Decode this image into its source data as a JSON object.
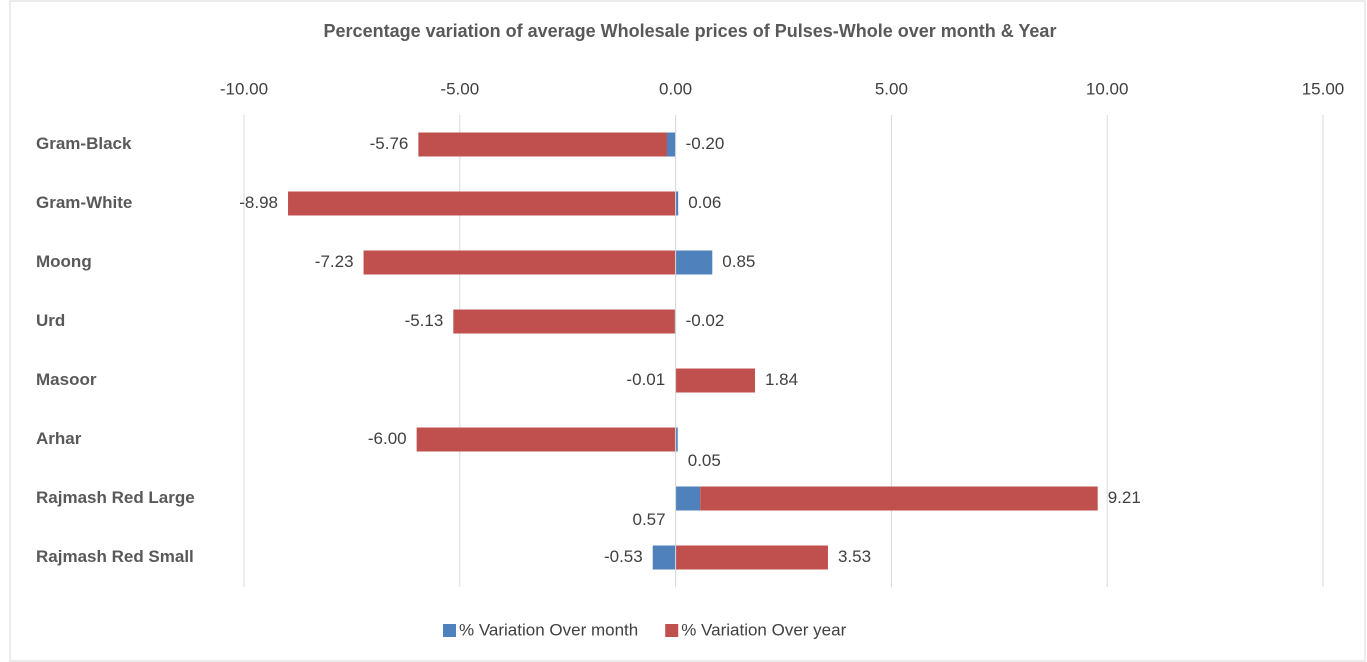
{
  "chart_data": {
    "type": "bar",
    "orientation": "horizontal",
    "stacked": true,
    "title": "Percentage variation of  average  Wholesale prices of Pulses-Whole over month & Year",
    "categories": [
      "Gram-Black",
      "Gram-White",
      "Moong",
      "Urd",
      "Masoor",
      "Arhar",
      "Rajmash Red Large",
      "Rajmash Red  Small"
    ],
    "series": [
      {
        "name": "% Variation Over month",
        "color": "#4f81bd",
        "values": [
          -0.2,
          0.06,
          0.85,
          -0.02,
          -0.01,
          0.05,
          0.57,
          -0.53
        ],
        "value_labels": [
          "-0.20",
          "0.06",
          "0.85",
          "-0.02",
          "-0.01",
          "0.05",
          "0.57",
          "-0.53"
        ]
      },
      {
        "name": "% Variation Over year",
        "color": "#c0504d",
        "values": [
          -5.76,
          -8.98,
          -7.23,
          -5.13,
          1.84,
          -6.0,
          9.21,
          3.53
        ],
        "value_labels": [
          "-5.76",
          "-8.98",
          "-7.23",
          "-5.13",
          "1.84",
          "-6.00",
          "9.21",
          "3.53"
        ]
      }
    ],
    "xlim": [
      -10,
      15
    ],
    "xticks": [
      {
        "value": -10,
        "label": "-10.00"
      },
      {
        "value": -5,
        "label": "-5.00"
      },
      {
        "value": 0,
        "label": "0.00"
      },
      {
        "value": 5,
        "label": "5.00"
      },
      {
        "value": 10,
        "label": "10.00"
      },
      {
        "value": 15,
        "label": "15.00"
      }
    ],
    "grid": true,
    "legend": "bottom"
  }
}
